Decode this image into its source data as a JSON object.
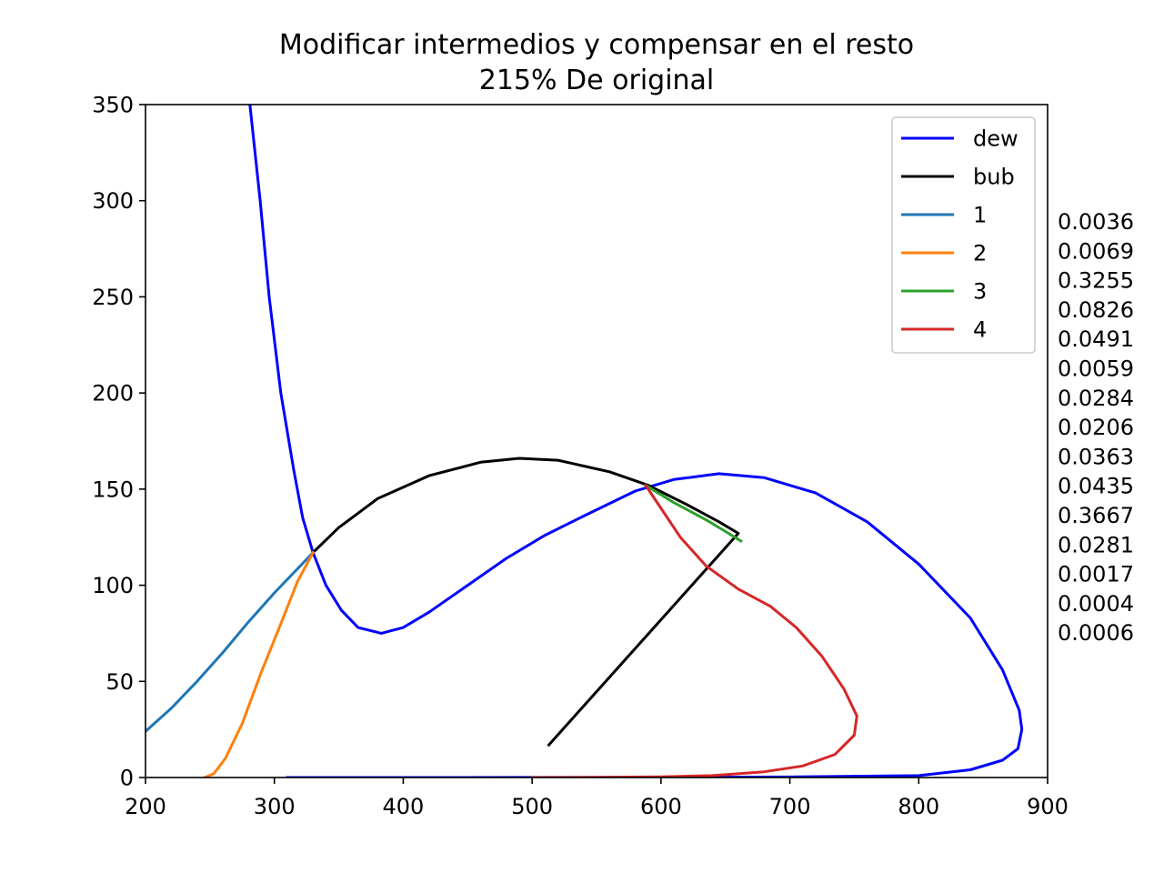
{
  "chart_data": {
    "type": "line",
    "title": "Modificar intermedios y compensar en el resto",
    "subtitle": "215% De original",
    "xlabel": "",
    "ylabel": "",
    "xlim": [
      200,
      900
    ],
    "ylim": [
      0,
      350
    ],
    "x_ticks": [
      200,
      300,
      400,
      500,
      600,
      700,
      800,
      900
    ],
    "y_ticks": [
      0,
      50,
      100,
      150,
      200,
      250,
      300,
      350
    ],
    "grid": false,
    "legend_position": "top-right",
    "series": [
      {
        "name": "dew",
        "color": "#0000ff",
        "points": [
          [
            281,
            350
          ],
          [
            289,
            300
          ],
          [
            296,
            250
          ],
          [
            305,
            200
          ],
          [
            315,
            160
          ],
          [
            322,
            135
          ],
          [
            330,
            117
          ],
          [
            340,
            100
          ],
          [
            352,
            87
          ],
          [
            365,
            78
          ],
          [
            383,
            75
          ],
          [
            400,
            78
          ],
          [
            420,
            86
          ],
          [
            450,
            100
          ],
          [
            480,
            114
          ],
          [
            510,
            126
          ],
          [
            540,
            136
          ],
          [
            580,
            149
          ],
          [
            610,
            155
          ],
          [
            645,
            158
          ],
          [
            680,
            156
          ],
          [
            720,
            148
          ],
          [
            760,
            133
          ],
          [
            800,
            111
          ],
          [
            840,
            83
          ],
          [
            865,
            56
          ],
          [
            878,
            35
          ],
          [
            880,
            25
          ],
          [
            877,
            15
          ],
          [
            865,
            9
          ],
          [
            840,
            4
          ],
          [
            800,
            1
          ],
          [
            700,
            0.3
          ],
          [
            600,
            0.1
          ],
          [
            500,
            0.05
          ],
          [
            400,
            0.02
          ],
          [
            310,
            0
          ]
        ]
      },
      {
        "name": "bub",
        "color": "#000000",
        "points": [
          [
            330,
            117
          ],
          [
            350,
            130
          ],
          [
            380,
            145
          ],
          [
            420,
            157
          ],
          [
            460,
            164
          ],
          [
            490,
            166
          ],
          [
            520,
            165
          ],
          [
            560,
            159
          ],
          [
            590,
            152
          ],
          [
            620,
            142
          ],
          [
            645,
            133
          ],
          [
            660,
            127
          ],
          [
            513,
            17
          ]
        ]
      },
      {
        "name": "1",
        "color": "#1f77b4",
        "points": [
          [
            200,
            24
          ],
          [
            220,
            36
          ],
          [
            240,
            50
          ],
          [
            260,
            65
          ],
          [
            280,
            81
          ],
          [
            300,
            96
          ],
          [
            320,
            110
          ],
          [
            330,
            117
          ]
        ]
      },
      {
        "name": "2",
        "color": "#ff7f0e",
        "points": [
          [
            246,
            0
          ],
          [
            253,
            2
          ],
          [
            262,
            10
          ],
          [
            275,
            28
          ],
          [
            290,
            55
          ],
          [
            305,
            80
          ],
          [
            318,
            102
          ],
          [
            330,
            117
          ]
        ]
      },
      {
        "name": "3",
        "color": "#2ca02c",
        "points": [
          [
            588,
            152
          ],
          [
            610,
            143
          ],
          [
            635,
            134
          ],
          [
            650,
            128
          ],
          [
            662,
            123
          ]
        ]
      },
      {
        "name": "4",
        "color": "#d62728",
        "points": [
          [
            588,
            152
          ],
          [
            600,
            140
          ],
          [
            615,
            125
          ],
          [
            635,
            110
          ],
          [
            660,
            98
          ],
          [
            685,
            89
          ],
          [
            705,
            78
          ],
          [
            725,
            63
          ],
          [
            742,
            46
          ],
          [
            752,
            32
          ],
          [
            750,
            22
          ],
          [
            735,
            12
          ],
          [
            710,
            6
          ],
          [
            680,
            3
          ],
          [
            640,
            1
          ],
          [
            600,
            0.4
          ],
          [
            550,
            0.1
          ],
          [
            500,
            0
          ]
        ]
      }
    ],
    "side_values": [
      "0.0036",
      "0.0069",
      "0.3255",
      "0.0826",
      "0.0491",
      "0.0059",
      "0.0284",
      "0.0206",
      "0.0363",
      "0.0435",
      "0.3667",
      "0.0281",
      "0.0017",
      "0.0004",
      "0.0006"
    ]
  }
}
